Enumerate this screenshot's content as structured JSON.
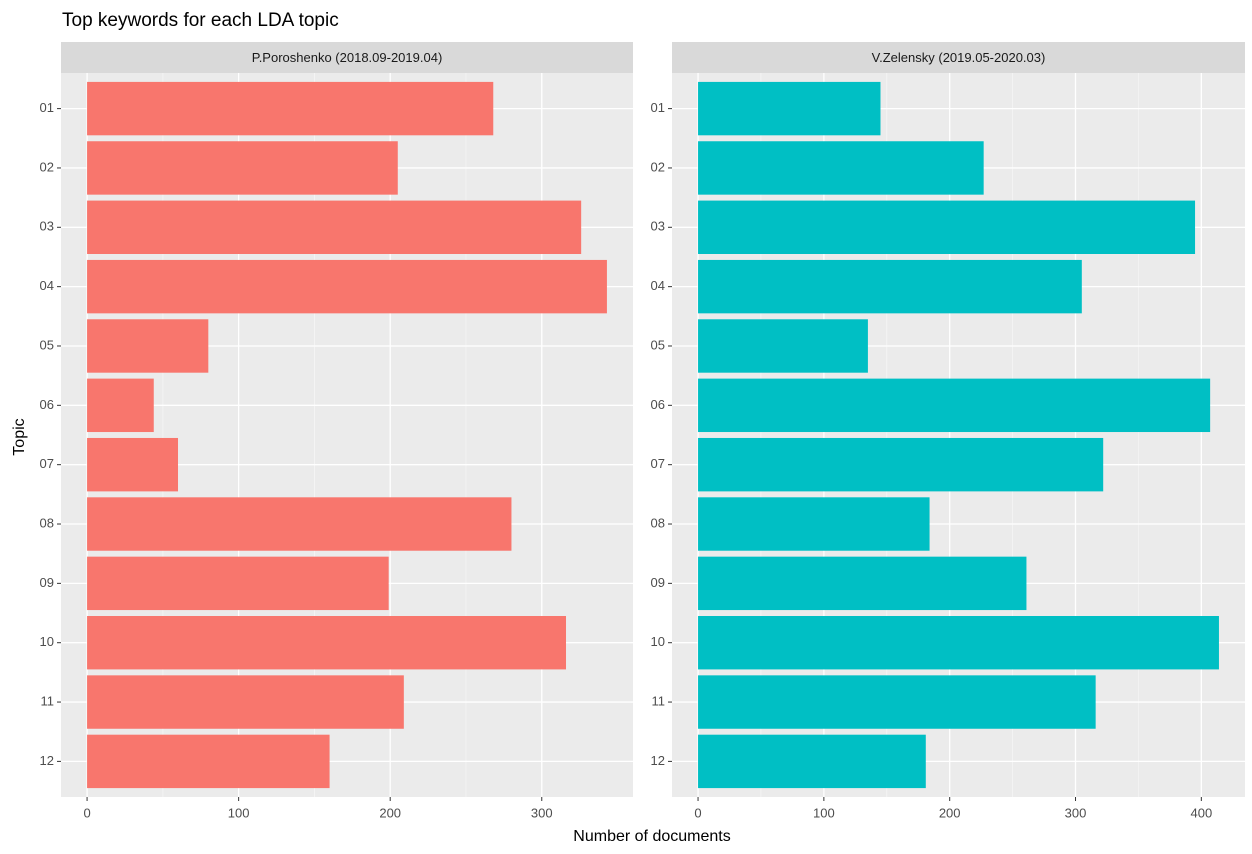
{
  "title": "Top keywords for each LDA topic",
  "x_label": "Number of documents",
  "y_label": "Topic",
  "chart_data": [
    {
      "type": "bar",
      "orientation": "horizontal",
      "title": "P.Poroshenko  (2018.09-2019.04)",
      "categories": [
        "01",
        "02",
        "03",
        "04",
        "05",
        "06",
        "07",
        "08",
        "09",
        "10",
        "11",
        "12"
      ],
      "values": [
        268,
        205,
        326,
        343,
        80,
        44,
        60,
        280,
        199,
        316,
        209,
        160
      ],
      "color": "#f8766d",
      "xlim": [
        -17.2,
        360.2
      ],
      "xticks": [
        0,
        100,
        200,
        300
      ],
      "grid": true,
      "minor_grid": true
    },
    {
      "type": "bar",
      "orientation": "horizontal",
      "title": "V.Zelensky (2019.05-2020.03)",
      "categories": [
        "01",
        "02",
        "03",
        "04",
        "05",
        "06",
        "07",
        "08",
        "09",
        "10",
        "11",
        "12"
      ],
      "values": [
        145,
        227,
        395,
        305,
        135,
        407,
        322,
        184,
        261,
        414,
        316,
        181
      ],
      "color": "#00bfc4",
      "xlim": [
        -20.7,
        434.7
      ],
      "xticks": [
        0,
        100,
        200,
        300,
        400
      ],
      "grid": true,
      "minor_grid": true
    }
  ]
}
